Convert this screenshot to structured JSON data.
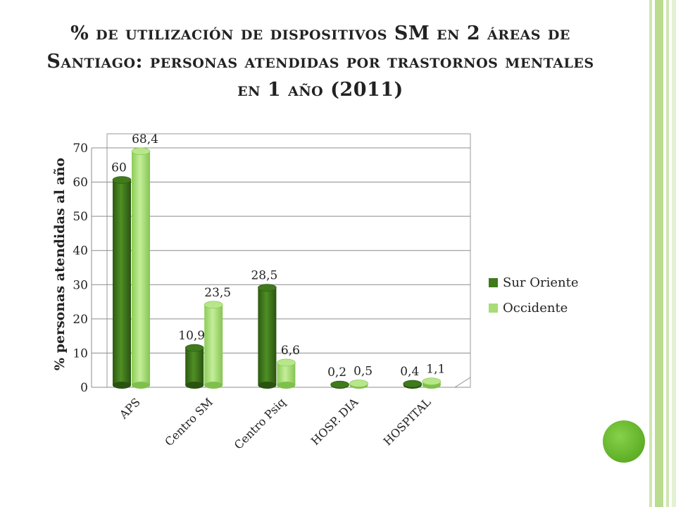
{
  "slide": {
    "title": "% de utilización de dispositivos SM en 2 áreas de Santiago: personas atendidas por trastornos mentales en 1 año (2011)"
  },
  "colors": {
    "sur_oriente": "#3f7a1c",
    "occidente": "#a8dc78",
    "accent_dot": "#6dbf2f",
    "stripe": "#b9dc8e"
  },
  "chart_data": {
    "type": "bar",
    "title": "% de utilización de dispositivos SM en 2 áreas de Santiago: personas atendidas por trastornos mentales en 1 año (2011)",
    "ylabel": "% personas atendidas al año",
    "xlabel": "",
    "categories": [
      "APS",
      "Centro SM",
      "Centro Psiq",
      "HOSP. DIA",
      "HOSPITAL"
    ],
    "series": [
      {
        "name": "Sur Oriente",
        "values": [
          60,
          10.9,
          28.5,
          0.2,
          0.4
        ],
        "labels": [
          "60",
          "10,9",
          "28,5",
          "0,2",
          "0,4"
        ]
      },
      {
        "name": "Occidente",
        "values": [
          68.4,
          23.5,
          6.6,
          0.5,
          1.1
        ],
        "labels": [
          "68,4",
          "23,5",
          "6,6",
          "0,5",
          "1,1"
        ]
      }
    ],
    "ylim": [
      0,
      70
    ],
    "yticks": [
      0,
      10,
      20,
      30,
      40,
      50,
      60,
      70
    ],
    "grid": true,
    "legend_position": "right",
    "style": "3d-cylinder"
  }
}
